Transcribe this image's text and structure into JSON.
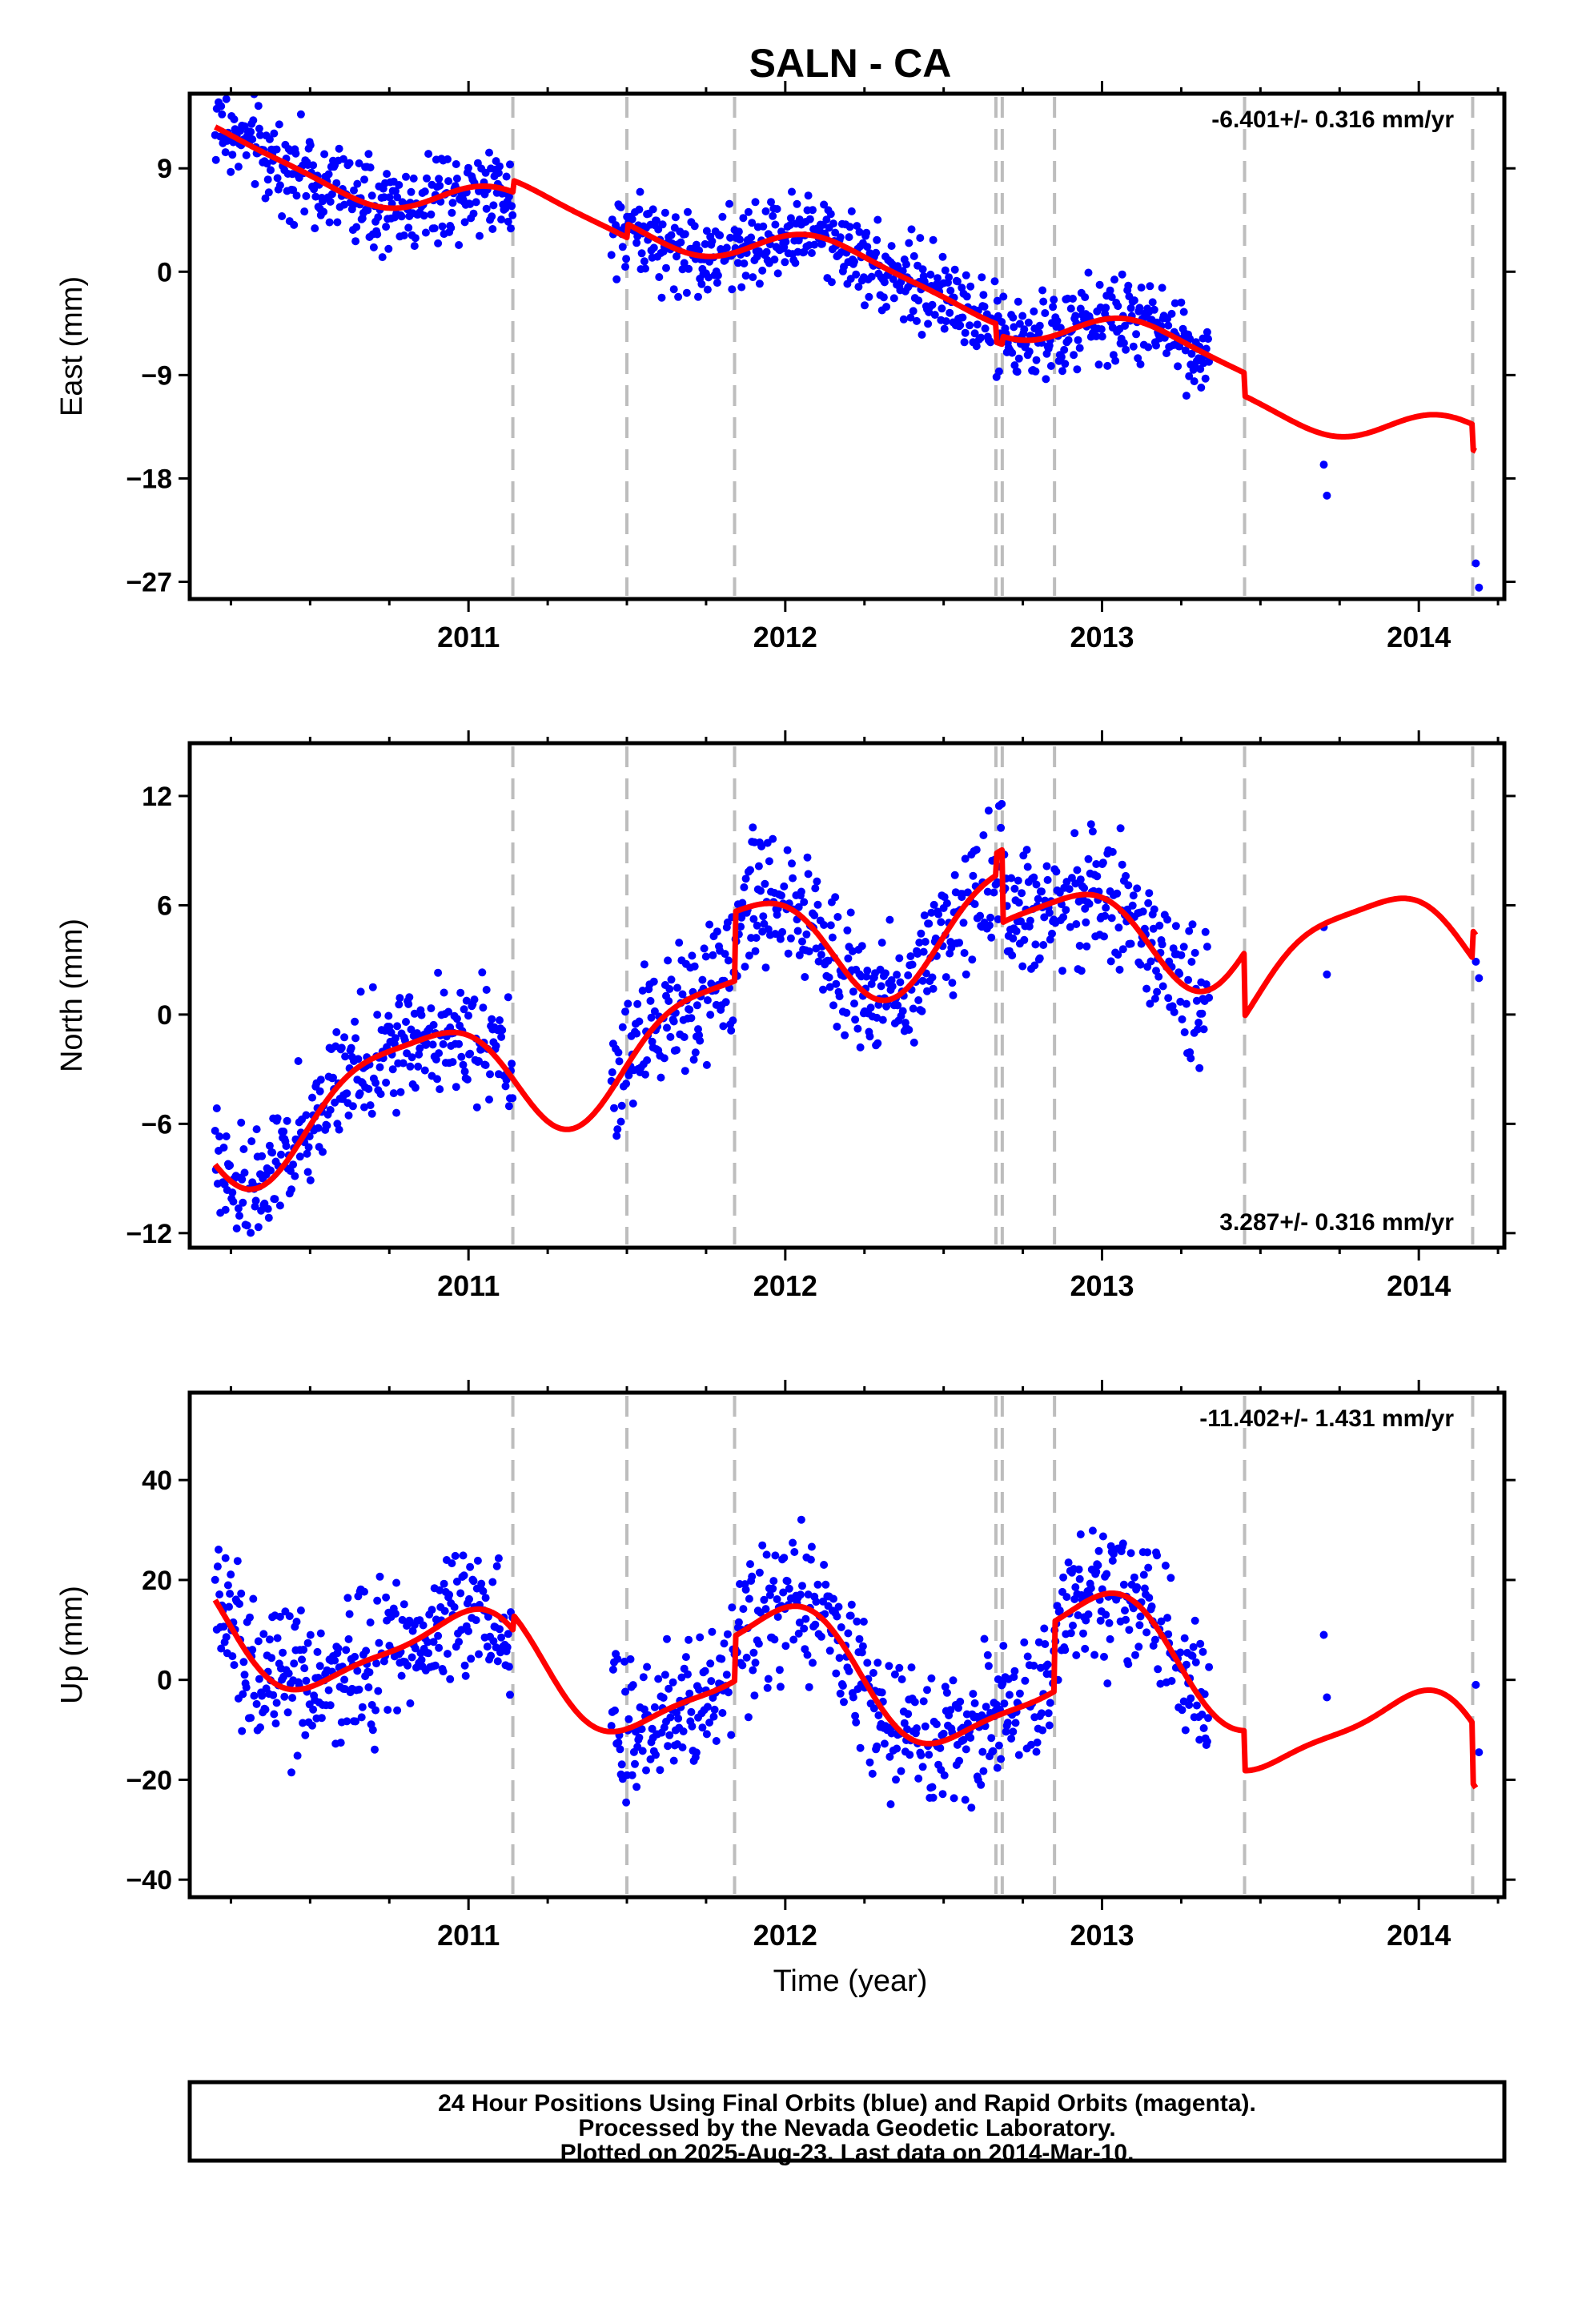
{
  "title": "SALN - CA",
  "xlabel": "Time (year)",
  "footer": {
    "line1": "24 Hour Positions Using Final Orbits (blue) and Rapid Orbits (magenta).",
    "line2": "Processed by the Nevada Geodetic Laboratory.",
    "line3": "Plotted on 2025-Aug-23. Last data on 2014-Mar-10."
  },
  "colors": {
    "points": "#0000ff",
    "model": "#ff0000",
    "event_lines": "#bdbdbd",
    "frame": "#000000"
  },
  "chart_data": [
    {
      "type": "scatter",
      "component": "east",
      "ylabel": "East (mm)",
      "rate_text": "-6.401+/- 0.316 mm/yr",
      "rate_position": "top-right",
      "xlim": [
        2010.12,
        2014.27
      ],
      "ylim": [
        -28.5,
        15.5
      ],
      "xticks": [
        2011,
        2012,
        2013,
        2014
      ],
      "yticks": [
        -27,
        -18,
        -9,
        0,
        9
      ],
      "event_lines": [
        2011.14,
        2011.5,
        2011.84,
        2012.665,
        2012.685,
        2012.85,
        2013.45,
        2014.17
      ],
      "data_range": [
        2010.2,
        2013.34
      ],
      "extra_points": [
        [
          2013.7,
          -16.8
        ],
        [
          2013.71,
          -19.5
        ],
        [
          2014.18,
          -25.4
        ],
        [
          2014.19,
          -27.5
        ]
      ],
      "model": {
        "rate": -6.401,
        "amp1": 1.9,
        "ph1": 0.6,
        "amp2": 0.4,
        "ph2": 1.2,
        "start": 2010.2,
        "end": 2014.18,
        "offset": 11.0,
        "breaks": [
          [
            2011.14,
            1.0
          ],
          [
            2011.5,
            1.2
          ],
          [
            2012.665,
            -1.6
          ],
          [
            2012.685,
            0.7
          ],
          [
            2013.45,
            -2.0
          ],
          [
            2014.17,
            -2.2
          ]
        ]
      },
      "noise": 1.8
    },
    {
      "type": "scatter",
      "component": "north",
      "ylabel": "North (mm)",
      "rate_text": "3.287+/- 0.316 mm/yr",
      "rate_position": "bottom-right",
      "xlim": [
        2010.12,
        2014.27
      ],
      "ylim": [
        -12.8,
        14.9
      ],
      "xticks": [
        2011,
        2012,
        2013,
        2014
      ],
      "yticks": [
        -12,
        -6,
        0,
        6,
        12
      ],
      "event_lines": [
        2011.14,
        2011.5,
        2011.84,
        2012.665,
        2012.685,
        2012.85,
        2013.45,
        2014.17
      ],
      "data_range": [
        2010.2,
        2013.34
      ],
      "extra_points": [
        [
          2013.7,
          4.8
        ],
        [
          2013.71,
          2.2
        ],
        [
          2014.18,
          2.9
        ],
        [
          2014.19,
          2.0
        ]
      ],
      "model": {
        "rate": 3.287,
        "amp1": 3.2,
        "ph1": 2.6,
        "amp2": 0.8,
        "ph2": 0.8,
        "start": 2010.2,
        "end": 2014.18,
        "offset": -6.0,
        "breaks": [
          [
            2011.84,
            3.8
          ],
          [
            2012.665,
            1.2
          ],
          [
            2012.685,
            -4.0
          ],
          [
            2013.45,
            -3.5
          ],
          [
            2014.17,
            1.5
          ]
        ]
      },
      "noise": 1.7
    },
    {
      "type": "scatter",
      "component": "up",
      "ylabel": "Up (mm)",
      "rate_text": "-11.402+/- 1.431 mm/yr",
      "rate_position": "top-right",
      "xlim": [
        2010.12,
        2014.27
      ],
      "ylim": [
        -43.5,
        57.5
      ],
      "xticks": [
        2011,
        2012,
        2013,
        2014
      ],
      "yticks": [
        -40,
        -20,
        0,
        20,
        40
      ],
      "event_lines": [
        2011.14,
        2011.5,
        2011.84,
        2012.665,
        2012.685,
        2012.85,
        2013.45,
        2014.17
      ],
      "data_range": [
        2010.2,
        2013.34
      ],
      "extra_points": [
        [
          2013.7,
          9.0
        ],
        [
          2013.71,
          -3.5
        ],
        [
          2014.18,
          -1.0
        ],
        [
          2014.19,
          -14.5
        ]
      ],
      "model": {
        "rate": -11.402,
        "amp1": 10.5,
        "ph1": 1.6,
        "amp2": 2.5,
        "ph2": 0.2,
        "start": 2010.2,
        "end": 2014.18,
        "offset": 12.0,
        "breaks": [
          [
            2011.14,
            3.0
          ],
          [
            2011.84,
            9.0
          ],
          [
            2012.85,
            14.0
          ],
          [
            2013.45,
            -8.0
          ],
          [
            2014.17,
            -12.0
          ]
        ]
      },
      "noise": 7.0
    }
  ]
}
